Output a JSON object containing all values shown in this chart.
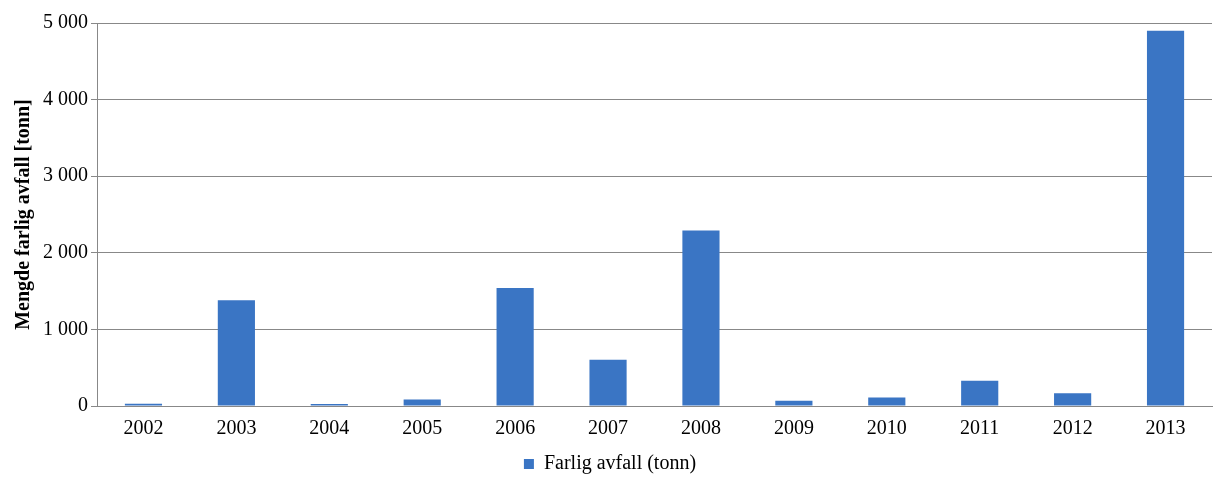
{
  "chart_data": {
    "type": "bar",
    "ylabel": "Mengde farlig avfall [tonn]",
    "categories": [
      "2002",
      "2003",
      "2004",
      "2005",
      "2006",
      "2007",
      "2008",
      "2009",
      "2010",
      "2011",
      "2012",
      "2013"
    ],
    "series": [
      {
        "name": "Farlig avfall (tonn)",
        "color": "#3a75c4",
        "values": [
          30,
          1380,
          25,
          85,
          1540,
          605,
          2290,
          70,
          110,
          330,
          165,
          4900
        ]
      }
    ],
    "ylim": [
      0,
      5000
    ],
    "yticks": [
      {
        "value": 0,
        "label": "0"
      },
      {
        "value": 1000,
        "label": "1 000"
      },
      {
        "value": 2000,
        "label": "2 000"
      },
      {
        "value": 3000,
        "label": "3 000"
      },
      {
        "value": 4000,
        "label": "4 000"
      },
      {
        "value": 5000,
        "label": "5 000"
      }
    ],
    "grid": "y",
    "legend": "bottom"
  }
}
